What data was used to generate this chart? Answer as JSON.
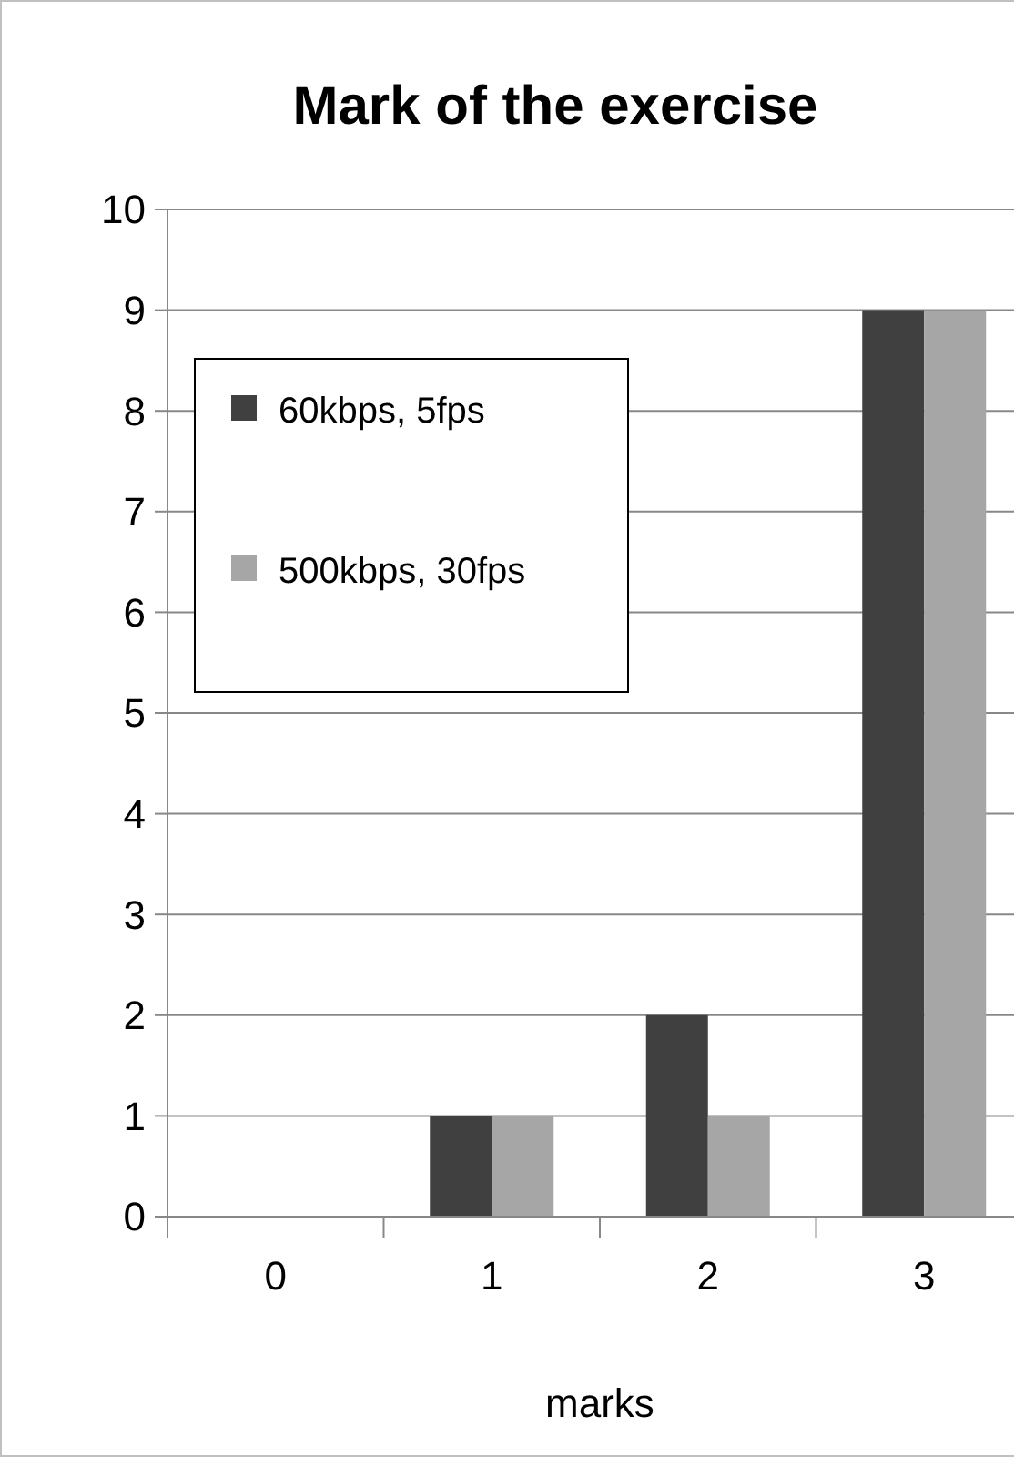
{
  "chart_data": {
    "type": "bar",
    "title": "Mark of the exercise",
    "xlabel": "marks",
    "categories": [
      "0",
      "1",
      "2",
      "3"
    ],
    "series": [
      {
        "name": "60kbps, 5fps",
        "color": "#404040",
        "values": [
          0,
          1,
          2,
          9
        ]
      },
      {
        "name": "500kbps, 30fps",
        "color": "#a6a6a6",
        "values": [
          0,
          1,
          1,
          9
        ]
      }
    ],
    "ylim": [
      0,
      10
    ],
    "yticks": [
      0,
      1,
      2,
      3,
      4,
      5,
      6,
      7,
      8,
      9,
      10
    ],
    "grid": "y",
    "legend": "top left"
  }
}
